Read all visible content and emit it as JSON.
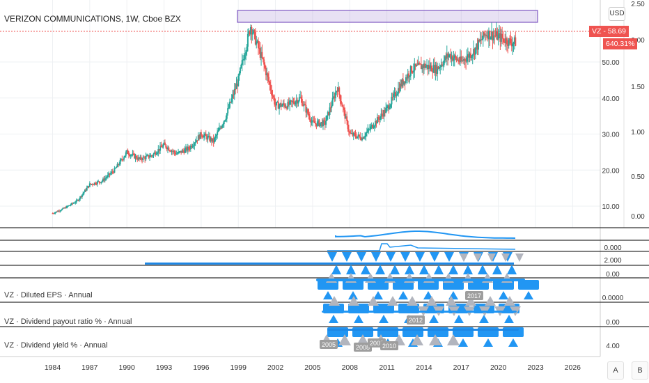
{
  "header": {
    "title": "VERIZON COMMUNICATIONS, 1W, Cboe BZX"
  },
  "currency": "USD",
  "price_tag": {
    "ticker_price": "VZ - 58.69",
    "percent": "640.31%"
  },
  "panes": {
    "eps": "VZ · Diluted EPS · Annual",
    "payout": "VZ · Dividend payout ratio % · Annual",
    "yield": "VZ · Dividend yield % · Annual"
  },
  "buttons": {
    "a": "A",
    "b": "B"
  },
  "colors": {
    "up": "#26a69a",
    "down": "#ef5350",
    "blue": "#2196f3",
    "grey": "#b2b5be",
    "purple": "#7e57c2",
    "pane_line": "#333333"
  },
  "chart_data": {
    "type": "candlestick",
    "title": "VERIZON COMMUNICATIONS, 1W, Cboe BZX",
    "x_ticks": [
      "1984",
      "1987",
      "1990",
      "1993",
      "1996",
      "1999",
      "2002",
      "2005",
      "2008",
      "2011",
      "2014",
      "2017",
      "2020",
      "2023",
      "2026"
    ],
    "price_axis": {
      "ticks": [
        "10.00",
        "20.00",
        "30.00",
        "40.00",
        "50.00"
      ]
    },
    "percent_axis": {
      "ticks": [
        "2.50",
        "2.00",
        "1.50",
        "1.00",
        "0.50",
        "0.00"
      ]
    },
    "last_price": 58.69,
    "price_series": {
      "name": "VZ",
      "years": [
        1984,
        1985,
        1986,
        1987,
        1988,
        1989,
        1990,
        1991,
        1992,
        1993,
        1994,
        1995,
        1996,
        1997,
        1998,
        1999,
        2000,
        2001,
        2002,
        2003,
        2004,
        2005,
        2006,
        2007,
        2008,
        2009,
        2010,
        2011,
        2012,
        2013,
        2014,
        2015,
        2016,
        2017,
        2018,
        2019,
        2020,
        2021
      ],
      "values": [
        8,
        9.5,
        11.5,
        16,
        17,
        20,
        25,
        23,
        24,
        27,
        24.5,
        26,
        30,
        28,
        35,
        45,
        60,
        50,
        38,
        38,
        40,
        33,
        33,
        43,
        30,
        29,
        33,
        37,
        43,
        48,
        49,
        48,
        52,
        50,
        53,
        58,
        57,
        55.5
      ]
    },
    "sub_axis_labels": [
      "0.000",
      "2.000",
      "0.00",
      "0.0000",
      "0.00",
      "4.00"
    ],
    "annotations": [
      "2005",
      "2008",
      "2009",
      "2010",
      "2012",
      "2017"
    ]
  }
}
